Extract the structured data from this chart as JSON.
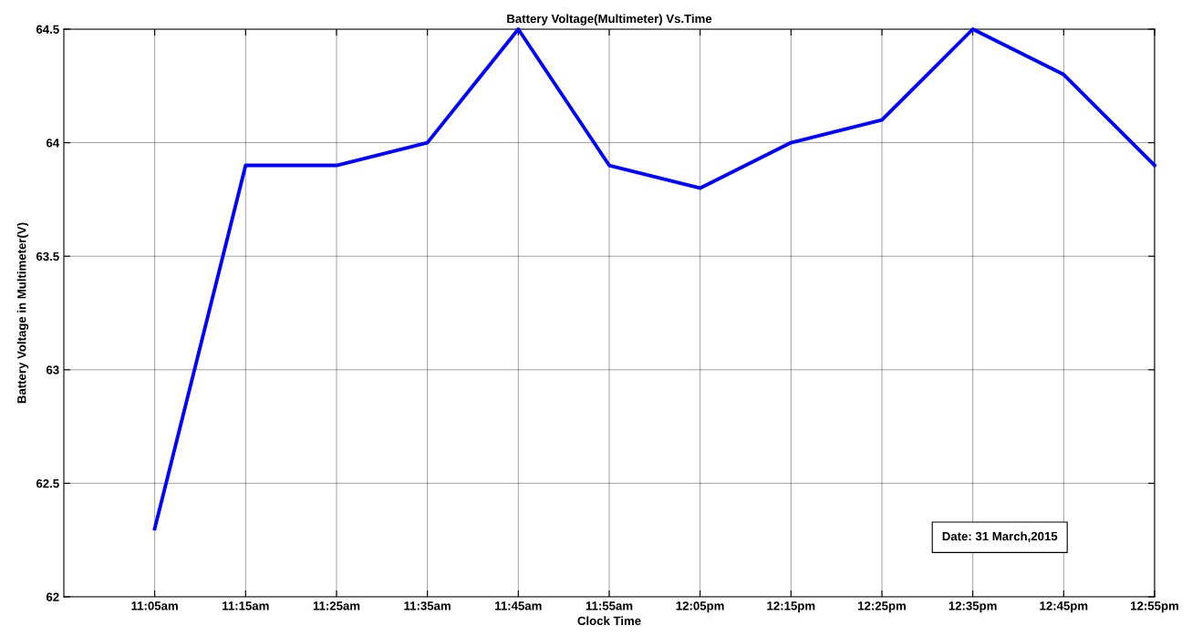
{
  "chart_data": {
    "type": "line",
    "title": "Battery Voltage(Multimeter) Vs.Time",
    "xlabel": "Clock Time",
    "ylabel": "Battery Voltage in Multimeter(V)",
    "x": [
      11.0833,
      11.25,
      11.4167,
      11.5833,
      11.75,
      11.9167,
      12.0833,
      12.25,
      12.4167,
      12.5833,
      12.75,
      12.9167
    ],
    "series": [
      {
        "color": "#0000ff",
        "values": [
          62.3,
          63.9,
          63.9,
          64.0,
          64.5,
          63.9,
          63.8,
          64.0,
          64.1,
          64.5,
          64.3,
          63.9
        ]
      }
    ],
    "xlim": [
      10.9167,
      12.9167
    ],
    "xticks": [
      {
        "value": 11.0833,
        "label": "11:05am"
      },
      {
        "value": 11.25,
        "label": "11:15am"
      },
      {
        "value": 11.4167,
        "label": "11:25am"
      },
      {
        "value": 11.5833,
        "label": "11:35am"
      },
      {
        "value": 11.75,
        "label": "11:45am"
      },
      {
        "value": 11.9167,
        "label": "11:55am"
      },
      {
        "value": 12.0833,
        "label": "12:05pm"
      },
      {
        "value": 12.25,
        "label": "12:15pm"
      },
      {
        "value": 12.4167,
        "label": "12:25pm"
      },
      {
        "value": 12.5833,
        "label": "12:35pm"
      },
      {
        "value": 12.75,
        "label": "12:45pm"
      },
      {
        "value": 12.9167,
        "label": "12:55pm"
      }
    ],
    "ylim": [
      62,
      64.5
    ],
    "yticks": [
      62,
      62.5,
      63,
      63.5,
      64,
      64.5
    ],
    "grid": true,
    "marker": "none",
    "line_style": "solid",
    "annotations": [
      "Date: 31 March,2015"
    ]
  }
}
